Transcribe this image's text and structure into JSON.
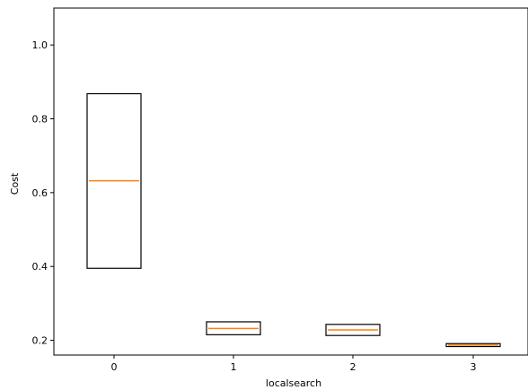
{
  "chart_data": {
    "type": "boxplot",
    "xlabel": "localsearch",
    "ylabel": "Cost",
    "x_categories": [
      "0",
      "1",
      "2",
      "3"
    ],
    "ylim": [
      0.16,
      1.1
    ],
    "yticks": [
      0.2,
      0.4,
      0.6,
      0.8,
      1.0
    ],
    "ytick_labels": [
      "0.2",
      "0.4",
      "0.6",
      "0.8",
      "1.0"
    ],
    "grid": false,
    "colors": {
      "box": "#000000",
      "median": "#ff7f0e"
    },
    "boxes": [
      {
        "category": "0",
        "q1": 0.395,
        "median": 0.632,
        "q3": 0.868
      },
      {
        "category": "1",
        "q1": 0.215,
        "median": 0.232,
        "q3": 0.25
      },
      {
        "category": "2",
        "q1": 0.213,
        "median": 0.228,
        "q3": 0.243
      },
      {
        "category": "3",
        "q1": 0.183,
        "median": 0.187,
        "q3": 0.191
      }
    ]
  }
}
